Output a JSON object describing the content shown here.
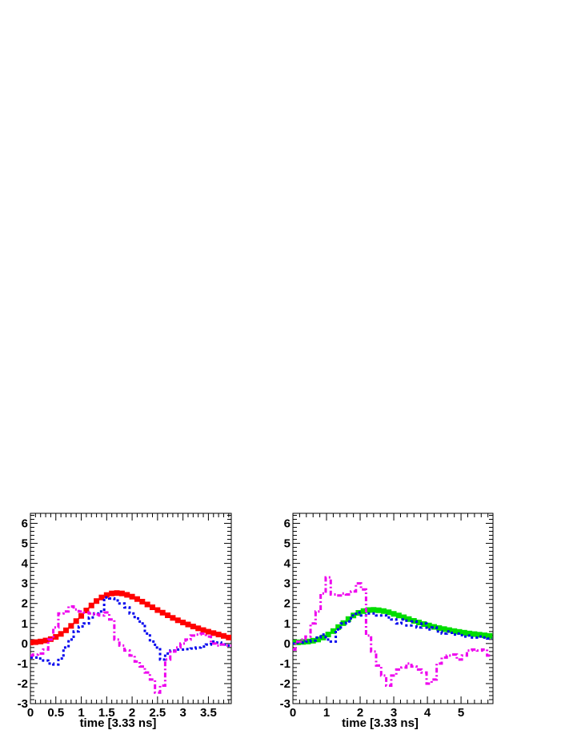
{
  "chart_data": [
    {
      "type": "line",
      "title": "",
      "xlabel": "time [3.33 ns]",
      "ylabel": "",
      "xlim": [
        0,
        3.95
      ],
      "ylim": [
        -3,
        6.5
      ],
      "x_ticks": [
        0,
        0.5,
        1,
        1.5,
        2,
        2.5,
        3,
        3.5
      ],
      "x_tick_labels": [
        "0",
        "0.5",
        "1",
        "1.5",
        "2",
        "2.5",
        "3",
        "3.5"
      ],
      "y_ticks": [
        -3,
        -2,
        -1,
        0,
        1,
        2,
        3,
        4,
        5,
        6
      ],
      "y_tick_labels": [
        "-3",
        "-2",
        "-1",
        "0",
        "1",
        "2",
        "3",
        "4",
        "5",
        "6"
      ],
      "grid": false,
      "series": [
        {
          "style": "squares",
          "color": "#ff0000",
          "x": [
            0,
            0.1,
            0.2,
            0.3,
            0.4,
            0.5,
            0.6,
            0.7,
            0.8,
            0.9,
            1.0,
            1.1,
            1.2,
            1.3,
            1.4,
            1.5,
            1.6,
            1.7,
            1.8,
            1.9,
            2.0,
            2.1,
            2.2,
            2.3,
            2.4,
            2.5,
            2.6,
            2.7,
            2.8,
            2.9,
            3.0,
            3.1,
            3.2,
            3.3,
            3.4,
            3.5,
            3.6,
            3.7,
            3.8,
            3.9
          ],
          "y": [
            0.05,
            0.07,
            0.1,
            0.15,
            0.22,
            0.33,
            0.48,
            0.66,
            0.88,
            1.12,
            1.38,
            1.65,
            1.9,
            2.12,
            2.3,
            2.42,
            2.5,
            2.52,
            2.5,
            2.43,
            2.34,
            2.22,
            2.09,
            1.95,
            1.81,
            1.67,
            1.54,
            1.41,
            1.28,
            1.16,
            1.05,
            0.95,
            0.85,
            0.76,
            0.67,
            0.59,
            0.52,
            0.45,
            0.38,
            0.3
          ]
        },
        {
          "style": "dotted",
          "color": "#0000ee",
          "x": [
            0,
            0.1,
            0.2,
            0.3,
            0.4,
            0.5,
            0.6,
            0.7,
            0.8,
            0.9,
            1.0,
            1.1,
            1.2,
            1.3,
            1.4,
            1.5,
            1.6,
            1.7,
            1.8,
            1.9,
            2.0,
            2.1,
            2.2,
            2.3,
            2.4,
            2.5,
            2.6,
            2.7,
            2.8,
            2.9,
            3.0,
            3.1,
            3.2,
            3.3,
            3.4,
            3.5,
            3.6,
            3.7,
            3.8,
            3.9
          ],
          "y": [
            -0.7,
            -0.7,
            -0.75,
            -0.85,
            -1.0,
            -1.05,
            -0.75,
            -0.2,
            0.2,
            0.6,
            0.85,
            1.0,
            1.3,
            1.5,
            1.6,
            2.3,
            2.25,
            2.15,
            2.0,
            1.8,
            1.5,
            1.25,
            1.0,
            0.5,
            0.1,
            -0.2,
            -0.8,
            -0.5,
            -0.35,
            -0.3,
            -0.3,
            -0.28,
            -0.25,
            -0.2,
            -0.15,
            -0.05,
            0.1,
            0.05,
            -0.05,
            -0.1
          ]
        },
        {
          "style": "dash-dot",
          "color": "#ee00ee",
          "x": [
            0,
            0.1,
            0.2,
            0.3,
            0.4,
            0.5,
            0.6,
            0.7,
            0.8,
            0.9,
            1.0,
            1.1,
            1.2,
            1.3,
            1.4,
            1.5,
            1.6,
            1.7,
            1.8,
            1.9,
            2.0,
            2.1,
            2.2,
            2.3,
            2.4,
            2.5,
            2.6,
            2.7,
            2.8,
            2.9,
            3.0,
            3.1,
            3.2,
            3.3,
            3.4,
            3.5,
            3.6,
            3.7,
            3.8,
            3.9
          ],
          "y": [
            -0.6,
            -0.55,
            -0.5,
            -0.3,
            0.2,
            0.8,
            1.5,
            1.6,
            1.85,
            1.7,
            1.6,
            1.55,
            1.5,
            1.45,
            1.4,
            1.55,
            1.2,
            0.2,
            -0.1,
            -0.35,
            -0.6,
            -0.9,
            -1.15,
            -1.45,
            -1.8,
            -2.45,
            -2.1,
            -0.8,
            -0.4,
            -0.2,
            0.0,
            0.2,
            0.4,
            0.45,
            0.5,
            0.35,
            0.0,
            -0.1,
            -0.05,
            -0.1
          ]
        }
      ]
    },
    {
      "type": "line",
      "title": "",
      "xlabel": "time [3.33 ns]",
      "ylabel": "",
      "xlim": [
        0,
        5.95
      ],
      "ylim": [
        -3,
        6.5
      ],
      "x_ticks": [
        0,
        1,
        2,
        3,
        4,
        5
      ],
      "x_tick_labels": [
        "0",
        "1",
        "2",
        "3",
        "4",
        "5"
      ],
      "y_ticks": [
        -3,
        -2,
        -1,
        0,
        1,
        2,
        3,
        4,
        5,
        6
      ],
      "y_tick_labels": [
        "-3",
        "-2",
        "-1",
        "0",
        "1",
        "2",
        "3",
        "4",
        "5",
        "6"
      ],
      "grid": false,
      "series": [
        {
          "style": "squares",
          "color": "#00dd00",
          "x": [
            0,
            0.15,
            0.3,
            0.45,
            0.6,
            0.75,
            0.9,
            1.05,
            1.2,
            1.35,
            1.5,
            1.65,
            1.8,
            1.95,
            2.1,
            2.25,
            2.4,
            2.55,
            2.7,
            2.85,
            3.0,
            3.15,
            3.3,
            3.45,
            3.6,
            3.75,
            3.9,
            4.05,
            4.2,
            4.35,
            4.5,
            4.65,
            4.8,
            4.95,
            5.1,
            5.25,
            5.4,
            5.55,
            5.7,
            5.85
          ],
          "y": [
            0.05,
            0.06,
            0.08,
            0.1,
            0.14,
            0.2,
            0.3,
            0.45,
            0.62,
            0.82,
            1.02,
            1.22,
            1.4,
            1.53,
            1.62,
            1.67,
            1.68,
            1.66,
            1.62,
            1.56,
            1.48,
            1.4,
            1.31,
            1.22,
            1.13,
            1.05,
            0.97,
            0.9,
            0.83,
            0.77,
            0.72,
            0.67,
            0.62,
            0.58,
            0.54,
            0.5,
            0.47,
            0.44,
            0.41,
            0.38
          ]
        },
        {
          "style": "dotted",
          "color": "#0000ee",
          "x": [
            0,
            0.15,
            0.3,
            0.45,
            0.6,
            0.75,
            0.9,
            1.05,
            1.2,
            1.35,
            1.5,
            1.65,
            1.8,
            1.95,
            2.1,
            2.25,
            2.4,
            2.55,
            2.7,
            2.85,
            3.0,
            3.15,
            3.3,
            3.45,
            3.6,
            3.75,
            3.9,
            4.05,
            4.2,
            4.35,
            4.5,
            4.65,
            4.8,
            4.95,
            5.1,
            5.25,
            5.4,
            5.55,
            5.7,
            5.85
          ],
          "y": [
            0.0,
            0.05,
            0.05,
            0.1,
            0.15,
            0.3,
            0.45,
            0.2,
            0.1,
            0.7,
            1.0,
            1.1,
            1.4,
            1.55,
            1.4,
            1.5,
            1.5,
            1.4,
            1.4,
            1.3,
            1.2,
            1.0,
            1.2,
            0.9,
            1.1,
            0.8,
            1.0,
            0.7,
            0.8,
            0.6,
            0.5,
            0.6,
            0.45,
            0.5,
            0.35,
            0.4,
            0.3,
            0.35,
            0.3,
            0.25
          ]
        },
        {
          "style": "dash-dot",
          "color": "#ee00ee",
          "x": [
            0,
            0.15,
            0.3,
            0.45,
            0.6,
            0.75,
            0.9,
            1.05,
            1.2,
            1.35,
            1.5,
            1.65,
            1.8,
            1.95,
            2.1,
            2.25,
            2.4,
            2.55,
            2.7,
            2.85,
            3.0,
            3.15,
            3.3,
            3.45,
            3.6,
            3.75,
            3.9,
            4.05,
            4.2,
            4.35,
            4.5,
            4.65,
            4.8,
            4.95,
            5.1,
            5.25,
            5.4,
            5.55,
            5.7,
            5.85
          ],
          "y": [
            -0.3,
            0.1,
            0.2,
            0.35,
            1.0,
            1.6,
            2.5,
            3.3,
            2.45,
            2.4,
            2.5,
            2.45,
            2.6,
            3.0,
            2.7,
            0.4,
            -0.4,
            -1.1,
            -1.6,
            -2.1,
            -1.6,
            -1.3,
            -1.2,
            -1.0,
            -1.15,
            -1.3,
            -1.45,
            -2.0,
            -1.8,
            -1.0,
            -0.7,
            -0.6,
            -0.55,
            -0.8,
            -0.6,
            -0.35,
            -0.3,
            -0.35,
            -0.3,
            -0.6
          ]
        }
      ]
    }
  ]
}
